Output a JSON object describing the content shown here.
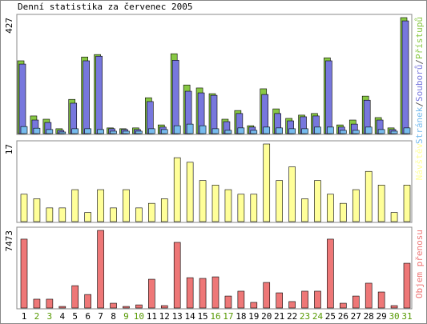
{
  "title": "Denní statistika za červenec 2005",
  "legend_separator": "/",
  "chart_data": [
    {
      "type": "grouped-bar",
      "ylim": [
        0,
        427
      ],
      "yticks": [
        427
      ],
      "series": [
        {
          "name": "Přístupů",
          "color": "#88c844",
          "values": [
            268,
            65,
            53,
            18,
            126,
            282,
            291,
            21,
            18,
            21,
            132,
            32,
            294,
            179,
            168,
            147,
            53,
            85,
            29,
            165,
            91,
            56,
            68,
            74,
            279,
            32,
            50,
            138,
            59,
            21,
            427
          ]
        },
        {
          "name": "Souborů",
          "color": "#7777dd",
          "values": [
            256,
            50,
            41,
            12,
            112,
            268,
            285,
            18,
            15,
            15,
            118,
            24,
            270,
            156,
            150,
            141,
            44,
            74,
            24,
            144,
            74,
            47,
            62,
            65,
            268,
            24,
            35,
            123,
            50,
            15,
            415
          ]
        },
        {
          "name": "Stránek",
          "color": "#77bbee",
          "values": [
            26,
            20,
            15,
            6,
            18,
            18,
            15,
            9,
            9,
            9,
            18,
            15,
            29,
            35,
            29,
            18,
            12,
            21,
            12,
            24,
            21,
            18,
            18,
            24,
            24,
            12,
            12,
            24,
            15,
            9,
            21
          ]
        }
      ]
    },
    {
      "type": "bar",
      "ylim": [
        0,
        17
      ],
      "yticks": [
        17
      ],
      "series": [
        {
          "name": "Návštěv",
          "color": "#ffff99",
          "values": [
            6,
            5,
            3,
            3,
            7,
            2,
            7,
            3,
            7,
            3,
            4,
            5,
            14,
            13,
            9,
            8,
            7,
            6,
            6,
            17,
            9,
            12,
            5,
            9,
            6,
            4,
            7,
            11,
            8,
            2,
            8
          ]
        }
      ]
    },
    {
      "type": "bar",
      "ylim": [
        0,
        7473
      ],
      "yticks": [
        7473
      ],
      "categories": [
        "1",
        "2",
        "3",
        "4",
        "5",
        "6",
        "7",
        "8",
        "9",
        "10",
        "11",
        "12",
        "13",
        "14",
        "15",
        "16",
        "17",
        "18",
        "19",
        "20",
        "21",
        "22",
        "23",
        "24",
        "25",
        "26",
        "27",
        "28",
        "29",
        "30",
        "31"
      ],
      "category_colors": [
        "#000000",
        "#559900",
        "#559900",
        "#000000",
        "#000000",
        "#000000",
        "#000000",
        "#000000",
        "#559900",
        "#559900",
        "#000000",
        "#000000",
        "#000000",
        "#000000",
        "#000000",
        "#559900",
        "#559900",
        "#000000",
        "#000000",
        "#000000",
        "#000000",
        "#000000",
        "#559900",
        "#559900",
        "#000000",
        "#000000",
        "#000000",
        "#000000",
        "#000000",
        "#559900",
        "#559900"
      ],
      "series": [
        {
          "name": "Objem přenosu",
          "color": "#ee7777",
          "values": [
            6631,
            850,
            850,
            150,
            2150,
            1300,
            7473,
            460,
            150,
            300,
            2770,
            230,
            6320,
            2920,
            2850,
            3000,
            1150,
            1620,
            540,
            2460,
            1460,
            620,
            1620,
            1620,
            6631,
            460,
            1150,
            2390,
            1540,
            230,
            4310
          ]
        }
      ]
    }
  ]
}
